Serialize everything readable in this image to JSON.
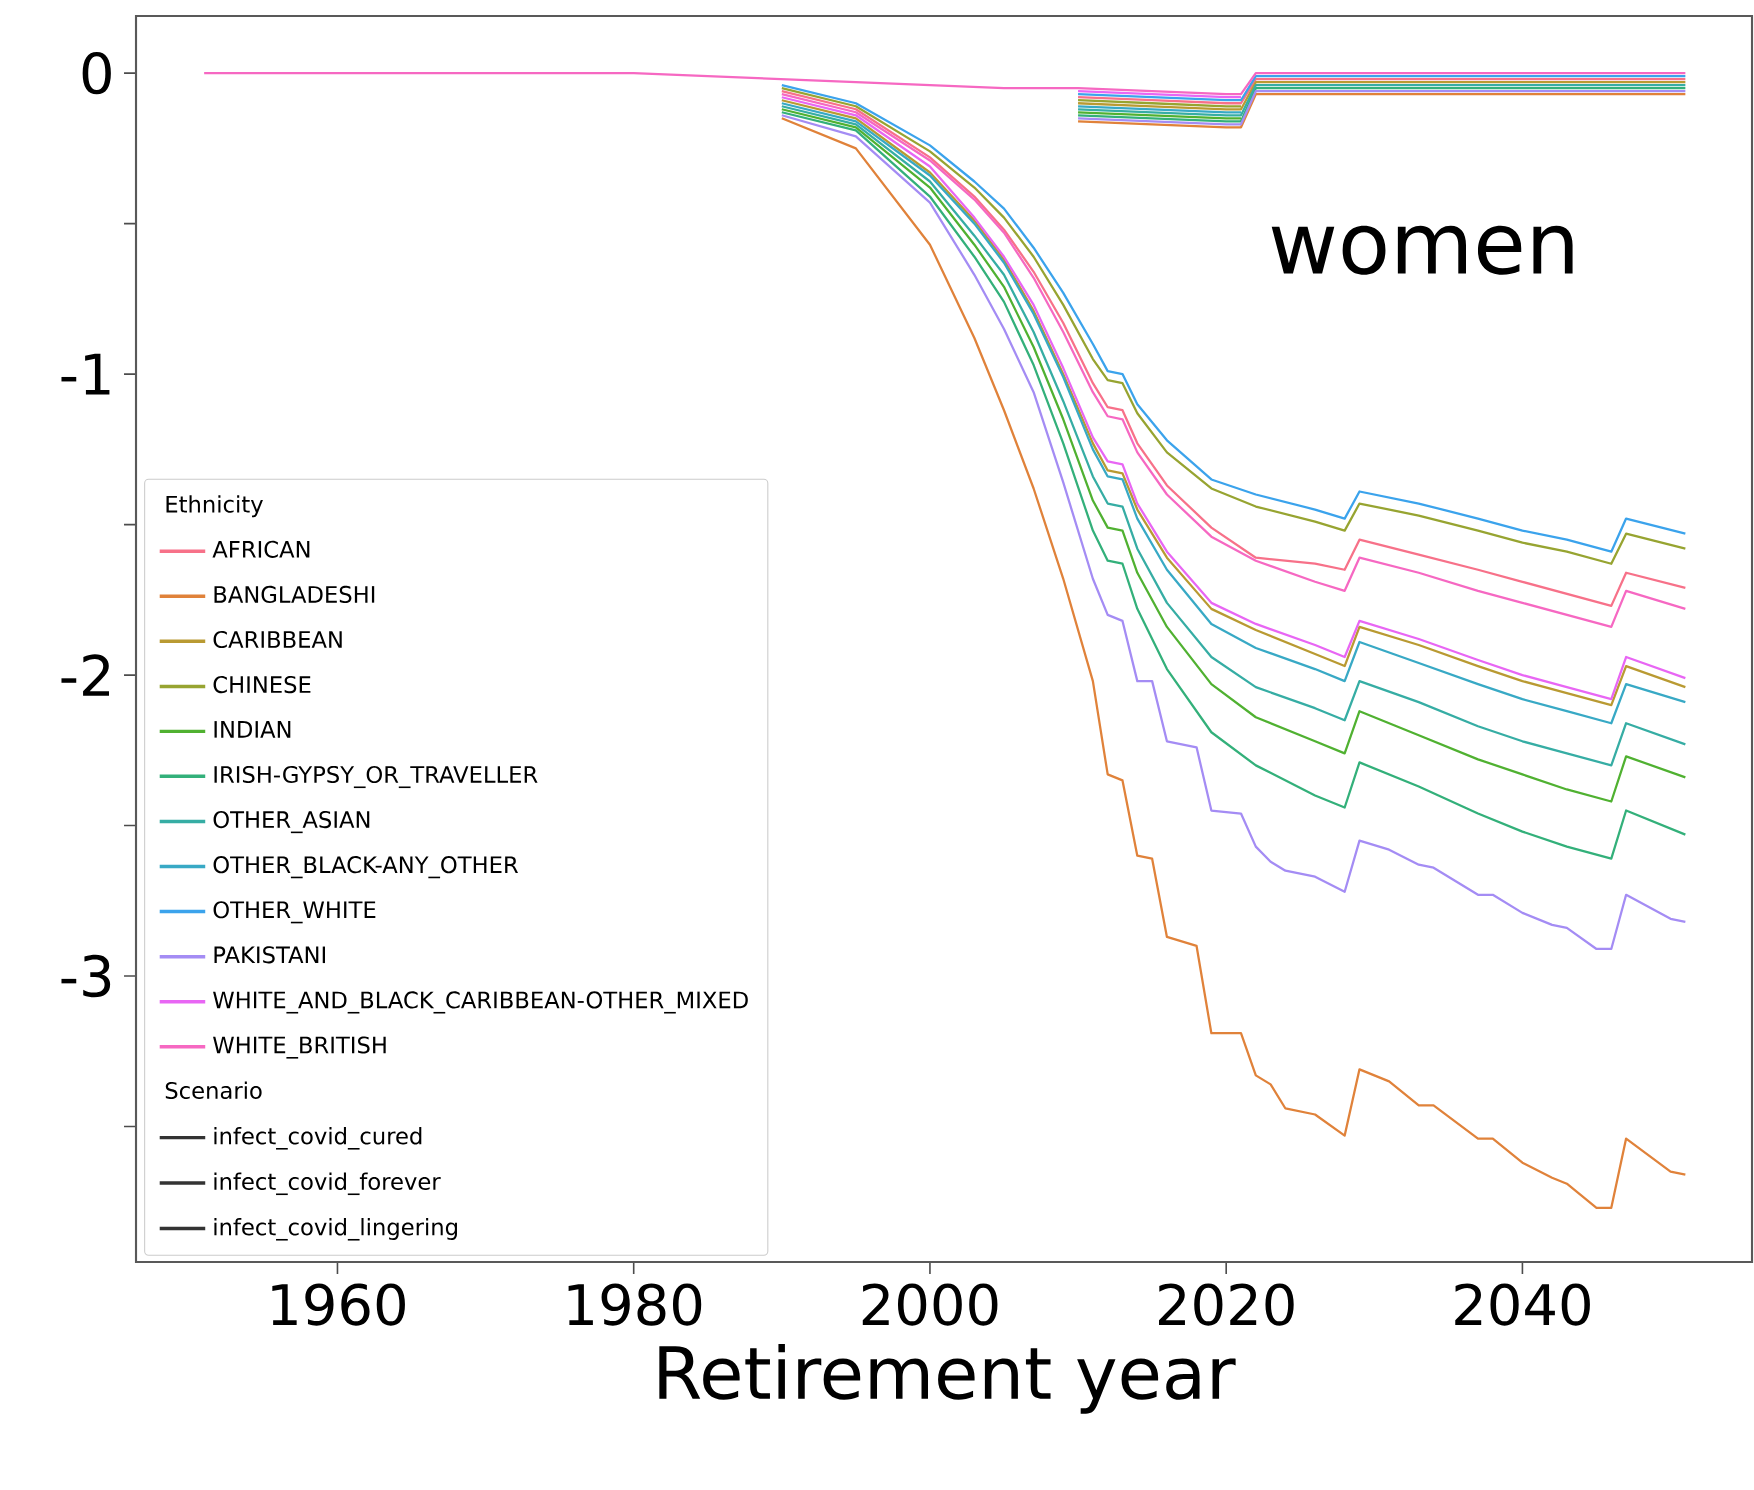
{
  "chart_data": {
    "type": "line",
    "xlabel": "Retirement year",
    "legend_title": "Ethnicity",
    "annotations": [
      "women",
      "Scenario"
    ],
    "legend": "bottom left",
    "xlim": [
      1946.4,
      2055.5
    ],
    "ylim": [
      -3.95,
      0.19
    ],
    "xticks": [
      1960,
      1980,
      2000,
      2020,
      2040
    ],
    "yticks": [
      0,
      {
        "value": -0.5,
        "label": null
      },
      -1,
      {
        "value": -1.5,
        "label": null
      },
      -2,
      {
        "value": -2.5,
        "label": null
      },
      -3,
      {
        "value": -3.5,
        "label": null
      }
    ],
    "x": [
      1990,
      1995,
      2000,
      2003,
      2005,
      2007,
      2009,
      2011,
      2012,
      2013,
      2014,
      2016,
      2019,
      2022,
      2026,
      2028,
      2029,
      2033,
      2037,
      2040,
      2043,
      2046,
      2047,
      2051
    ],
    "series": [
      {
        "name": "AFRICAN",
        "color": "#f77189",
        "values": [
          -0.06,
          -0.12,
          -0.28,
          -0.41,
          -0.52,
          -0.66,
          -0.83,
          -1.03,
          -1.11,
          -1.12,
          -1.23,
          -1.37,
          -1.51,
          -1.61,
          -1.63,
          -1.65,
          -1.55,
          -1.6,
          -1.65,
          -1.69,
          -1.73,
          -1.77,
          -1.66,
          -1.71
        ]
      },
      {
        "name": "BANGLADESHI",
        "color": "#e0823a",
        "x": [
          1990,
          1995,
          2000,
          2003,
          2005,
          2007,
          2009,
          2011,
          2012,
          2013,
          2014,
          2015,
          2016,
          2018,
          2019,
          2021,
          2022,
          2023,
          2024,
          2026,
          2028,
          2029,
          2031,
          2033,
          2034,
          2037,
          2038,
          2040,
          2042,
          2043,
          2045,
          2046,
          2047,
          2050,
          2051
        ],
        "values": [
          -0.15,
          -0.25,
          -0.57,
          -0.88,
          -1.12,
          -1.38,
          -1.68,
          -2.02,
          -2.33,
          -2.35,
          -2.6,
          -2.61,
          -2.87,
          -2.9,
          -3.19,
          -3.19,
          -3.33,
          -3.36,
          -3.44,
          -3.46,
          -3.53,
          -3.31,
          -3.35,
          -3.43,
          -3.43,
          -3.54,
          -3.54,
          -3.62,
          -3.67,
          -3.69,
          -3.77,
          -3.77,
          -3.54,
          -3.65,
          -3.66
        ]
      },
      {
        "name": "CARIBBEAN",
        "color": "#b99a32",
        "values": [
          -0.09,
          -0.15,
          -0.33,
          -0.49,
          -0.62,
          -0.79,
          -1.0,
          -1.23,
          -1.32,
          -1.33,
          -1.45,
          -1.61,
          -1.78,
          -1.85,
          -1.93,
          -1.97,
          -1.84,
          -1.9,
          -1.97,
          -2.02,
          -2.06,
          -2.1,
          -1.97,
          -2.04
        ]
      },
      {
        "name": "CHINESE",
        "color": "#97a431",
        "values": [
          -0.05,
          -0.11,
          -0.26,
          -0.38,
          -0.48,
          -0.61,
          -0.77,
          -0.95,
          -1.02,
          -1.03,
          -1.13,
          -1.26,
          -1.38,
          -1.44,
          -1.49,
          -1.52,
          -1.43,
          -1.47,
          -1.52,
          -1.56,
          -1.59,
          -1.63,
          -1.53,
          -1.58
        ]
      },
      {
        "name": "INDIAN",
        "color": "#50b131",
        "values": [
          -0.12,
          -0.18,
          -0.38,
          -0.57,
          -0.71,
          -0.91,
          -1.15,
          -1.42,
          -1.51,
          -1.52,
          -1.66,
          -1.84,
          -2.03,
          -2.14,
          -2.22,
          -2.26,
          -2.12,
          -2.2,
          -2.28,
          -2.33,
          -2.38,
          -2.42,
          -2.27,
          -2.34
        ]
      },
      {
        "name": "IRISH-GYPSY_OR_TRAVELLER",
        "color": "#33b07a",
        "values": [
          -0.13,
          -0.19,
          -0.41,
          -0.61,
          -0.76,
          -0.97,
          -1.23,
          -1.52,
          -1.62,
          -1.63,
          -1.78,
          -1.98,
          -2.19,
          -2.3,
          -2.4,
          -2.44,
          -2.29,
          -2.37,
          -2.46,
          -2.52,
          -2.57,
          -2.61,
          -2.45,
          -2.53
        ]
      },
      {
        "name": "OTHER_ASIAN",
        "color": "#36ada4",
        "values": [
          -0.11,
          -0.17,
          -0.36,
          -0.54,
          -0.67,
          -0.86,
          -1.09,
          -1.34,
          -1.43,
          -1.44,
          -1.58,
          -1.76,
          -1.94,
          -2.04,
          -2.11,
          -2.15,
          -2.02,
          -2.09,
          -2.17,
          -2.22,
          -2.26,
          -2.3,
          -2.16,
          -2.23
        ]
      },
      {
        "name": "OTHER_BLACK-ANY_OTHER",
        "color": "#38a9c5",
        "values": [
          -0.1,
          -0.16,
          -0.34,
          -0.5,
          -0.63,
          -0.8,
          -1.01,
          -1.25,
          -1.34,
          -1.35,
          -1.48,
          -1.65,
          -1.83,
          -1.91,
          -1.98,
          -2.02,
          -1.89,
          -1.96,
          -2.03,
          -2.08,
          -2.12,
          -2.16,
          -2.03,
          -2.09
        ]
      },
      {
        "name": "OTHER_WHITE",
        "color": "#3ba3ec",
        "values": [
          -0.04,
          -0.1,
          -0.24,
          -0.36,
          -0.45,
          -0.58,
          -0.73,
          -0.9,
          -0.99,
          -1.0,
          -1.1,
          -1.22,
          -1.35,
          -1.4,
          -1.45,
          -1.48,
          -1.39,
          -1.43,
          -1.48,
          -1.52,
          -1.55,
          -1.59,
          -1.48,
          -1.53
        ]
      },
      {
        "name": "PAKISTANI",
        "color": "#a48cf4",
        "x": [
          1990,
          1995,
          2000,
          2003,
          2005,
          2007,
          2009,
          2011,
          2012,
          2013,
          2014,
          2015,
          2016,
          2018,
          2019,
          2021,
          2022,
          2023,
          2024,
          2026,
          2028,
          2029,
          2031,
          2033,
          2034,
          2037,
          2038,
          2040,
          2042,
          2043,
          2045,
          2046,
          2047,
          2050,
          2051
        ],
        "values": [
          -0.14,
          -0.21,
          -0.43,
          -0.67,
          -0.85,
          -1.06,
          -1.36,
          -1.68,
          -1.8,
          -1.82,
          -2.02,
          -2.02,
          -2.22,
          -2.24,
          -2.45,
          -2.46,
          -2.57,
          -2.62,
          -2.65,
          -2.67,
          -2.72,
          -2.55,
          -2.58,
          -2.63,
          -2.64,
          -2.73,
          -2.73,
          -2.79,
          -2.83,
          -2.84,
          -2.91,
          -2.91,
          -2.73,
          -2.81,
          -2.82
        ]
      },
      {
        "name": "WHITE_AND_BLACK_CARIBBEAN-OTHER_MIXED",
        "color": "#e866f4",
        "values": [
          -0.08,
          -0.14,
          -0.31,
          -0.48,
          -0.61,
          -0.77,
          -0.98,
          -1.21,
          -1.29,
          -1.3,
          -1.43,
          -1.59,
          -1.76,
          -1.83,
          -1.9,
          -1.94,
          -1.82,
          -1.88,
          -1.95,
          -2.0,
          -2.04,
          -2.08,
          -1.94,
          -2.01
        ]
      },
      {
        "name": "WHITE_BRITISH",
        "color": "#f668c2",
        "values": [
          -0.07,
          -0.13,
          -0.29,
          -0.42,
          -0.53,
          -0.68,
          -0.86,
          -1.06,
          -1.14,
          -1.15,
          -1.26,
          -1.4,
          -1.54,
          -1.62,
          -1.69,
          -1.72,
          -1.61,
          -1.66,
          -1.72,
          -1.76,
          -1.8,
          -1.84,
          -1.72,
          -1.78
        ]
      },
      {
        "color": "#f77189",
        "x": [
          2010,
          2015,
          2020,
          2021,
          2022,
          2051
        ],
        "values": [
          -0.08,
          -0.09,
          -0.1,
          -0.1,
          -0.02,
          -0.02
        ]
      },
      {
        "color": "#e0823a",
        "x": [
          2010,
          2015,
          2020,
          2021,
          2022,
          2051
        ],
        "values": [
          -0.16,
          -0.17,
          -0.18,
          -0.18,
          -0.07,
          -0.07
        ]
      },
      {
        "color": "#b99a32",
        "x": [
          2010,
          2015,
          2020,
          2021,
          2022,
          2051
        ],
        "values": [
          -0.1,
          -0.11,
          -0.12,
          -0.12,
          -0.03,
          -0.03
        ]
      },
      {
        "color": "#97a431",
        "x": [
          2010,
          2015,
          2020,
          2021
        ],
        "values": [
          -0.09,
          -0.1,
          -0.11,
          -0.11
        ]
      },
      {
        "color": "#50b131",
        "x": [
          2010,
          2015,
          2020,
          2021
        ],
        "values": [
          -0.13,
          -0.14,
          -0.15,
          -0.15
        ]
      },
      {
        "color": "#33b07a",
        "x": [
          2010,
          2015,
          2020,
          2021,
          2022,
          2051
        ],
        "values": [
          -0.14,
          -0.15,
          -0.16,
          -0.16,
          -0.05,
          -0.05
        ]
      },
      {
        "color": "#36ada4",
        "x": [
          2010,
          2015,
          2020,
          2021,
          2022,
          2051
        ],
        "values": [
          -0.12,
          -0.13,
          -0.14,
          -0.14,
          -0.04,
          -0.04
        ]
      },
      {
        "color": "#38a9c5",
        "x": [
          2010,
          2015,
          2020,
          2021
        ],
        "values": [
          -0.11,
          -0.12,
          -0.13,
          -0.13
        ]
      },
      {
        "color": "#3ba3ec",
        "x": [
          2010,
          2015,
          2020,
          2021,
          2022,
          2051
        ],
        "values": [
          -0.07,
          -0.08,
          -0.09,
          -0.09,
          -0.01,
          -0.01
        ]
      },
      {
        "color": "#a48cf4",
        "x": [
          2010,
          2015,
          2020,
          2021,
          2022,
          2051
        ],
        "values": [
          -0.15,
          -0.16,
          -0.17,
          -0.17,
          -0.06,
          -0.06
        ]
      },
      {
        "color": "#e866f4",
        "x": [
          2010,
          2015,
          2020,
          2021
        ],
        "values": [
          -0.06,
          -0.07,
          -0.08,
          -0.08
        ]
      },
      {
        "color": "#f668c2",
        "x": [
          1951,
          1980,
          1985,
          1990,
          1995,
          2000,
          2005,
          2010,
          2015,
          2020,
          2021,
          2022,
          2051
        ],
        "values": [
          0,
          0,
          -0.01,
          -0.02,
          -0.03,
          -0.04,
          -0.05,
          -0.05,
          -0.06,
          -0.07,
          -0.07,
          0,
          0
        ]
      },
      {
        "name": "infect_covid_cured",
        "color": "#333333",
        "values": [
          null,
          null,
          null,
          null,
          null,
          null,
          null,
          null,
          null,
          null,
          null,
          null,
          null,
          null,
          null,
          null,
          null,
          null,
          null,
          null,
          null,
          null,
          null,
          null
        ]
      },
      {
        "name": "infect_covid_forever",
        "color": "#333333",
        "values": [
          null,
          null,
          null,
          null,
          null,
          null,
          null,
          null,
          null,
          null,
          null,
          null,
          null,
          null,
          null,
          null,
          null,
          null,
          null,
          null,
          null,
          null,
          null,
          null
        ]
      },
      {
        "name": "infect_covid_lingering",
        "color": "#333333",
        "values": [
          null,
          null,
          null,
          null,
          null,
          null,
          null,
          null,
          null,
          null,
          null,
          null,
          null,
          null,
          null,
          null,
          null,
          null,
          null,
          null,
          null,
          null,
          null,
          null
        ]
      }
    ]
  }
}
